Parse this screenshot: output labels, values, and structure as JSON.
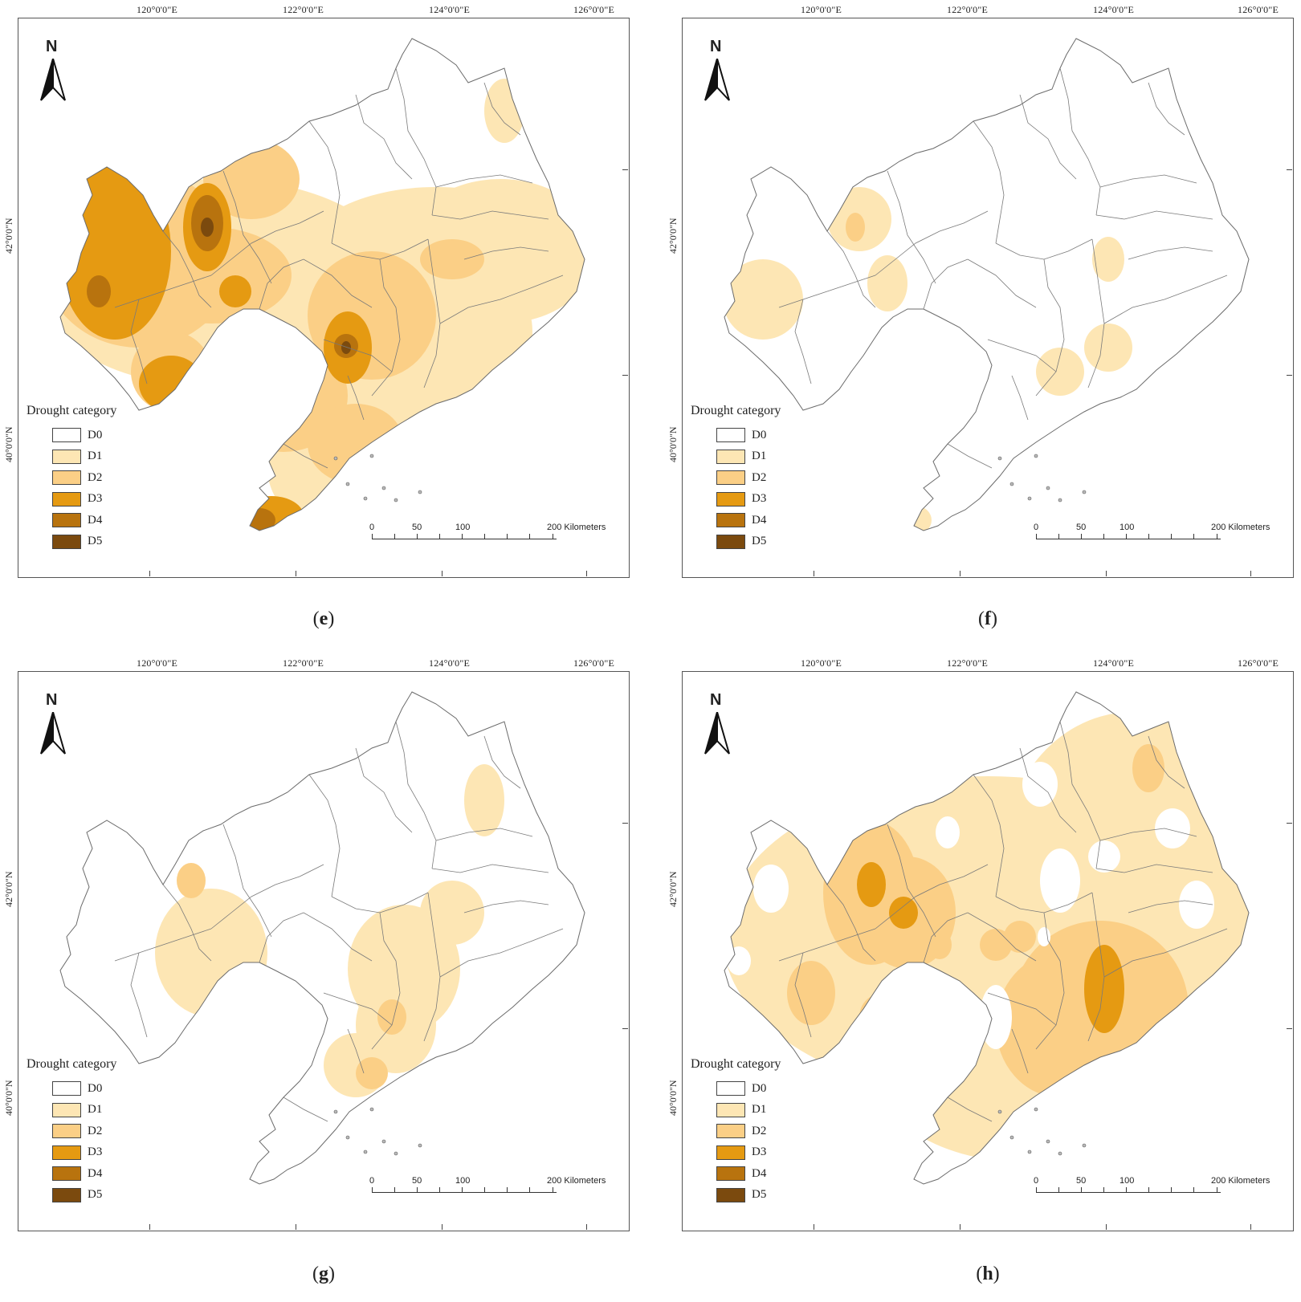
{
  "figure": {
    "legend_title": "Drought category",
    "legend": [
      {
        "label": "D0",
        "color": "#ffffff"
      },
      {
        "label": "D1",
        "color": "#fde6b4"
      },
      {
        "label": "D2",
        "color": "#fbcf86"
      },
      {
        "label": "D3",
        "color": "#e59a12"
      },
      {
        "label": "D4",
        "color": "#b8730e"
      },
      {
        "label": "D5",
        "color": "#7b4a0e"
      }
    ],
    "north_letter": "N",
    "lon_labels": [
      "120°0'0\"E",
      "122°0'0\"E",
      "124°0'0\"E",
      "126°0'0\"E"
    ],
    "lat_labels": [
      "42°0'0\"N",
      "40°0'0\"N"
    ],
    "scale": {
      "n0": "0",
      "n1": "50",
      "n2": "100",
      "n3": "200 Kilometers"
    },
    "panels": [
      {
        "label": "e",
        "caption_open": "(",
        "caption_close": ")"
      },
      {
        "label": "f",
        "caption_open": "(",
        "caption_close": ")"
      },
      {
        "label": "g",
        "caption_open": "(",
        "caption_close": ")"
      },
      {
        "label": "h",
        "caption_open": "(",
        "caption_close": ")"
      }
    ]
  }
}
